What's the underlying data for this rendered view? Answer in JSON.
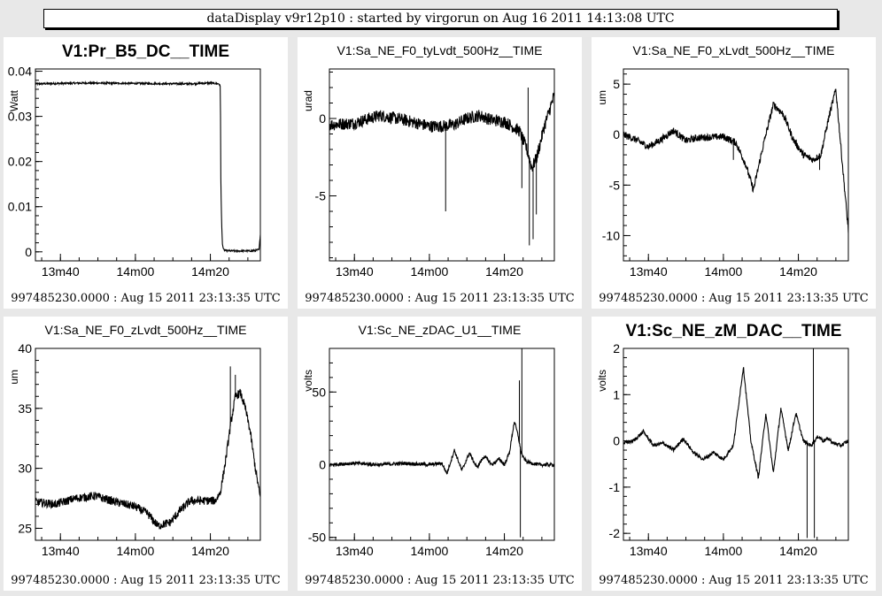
{
  "header": {
    "title": "dataDisplay v9r12p10 : started by virgorun on Aug 16 2011 14:13:08 UTC"
  },
  "chart_data": [
    {
      "type": "line",
      "title": "V1:Pr_B5_DC__TIME",
      "ylabel": "Watt",
      "xlabel": "",
      "footer": "997485230.0000 : Aug 15 2011 23:13:35 UTC",
      "xlim": [
        0,
        900
      ],
      "ylim": [
        -0.002,
        0.0405
      ],
      "x_ticks": [
        {
          "value": 100,
          "label": "13m40"
        },
        {
          "value": 400,
          "label": "14m00"
        },
        {
          "value": 700,
          "label": "14m20"
        }
      ],
      "y_ticks": [
        {
          "value": 0,
          "label": "0"
        },
        {
          "value": 0.01,
          "label": "0.01"
        },
        {
          "value": 0.02,
          "label": "0.02"
        },
        {
          "value": 0.03,
          "label": "0.03"
        },
        {
          "value": 0.04,
          "label": "0.04"
        }
      ],
      "series": [
        {
          "x": [
            0,
            200,
            400,
            600,
            700,
            735,
            740,
            742,
            745,
            748,
            752,
            760,
            780,
            820,
            860,
            880,
            895,
            900
          ],
          "y": [
            0.0372,
            0.0374,
            0.0373,
            0.0372,
            0.0374,
            0.0372,
            0.0365,
            0.015,
            0.0065,
            0.002,
            0.0005,
            0.0003,
            0.0002,
            0.0002,
            0.0002,
            0.0003,
            0.0005,
            0.004
          ],
          "noise": 0.0002
        }
      ]
    },
    {
      "type": "line",
      "title": "V1:Sa_NE_F0_tyLvdt_500Hz__TIME",
      "ylabel": "urad",
      "xlabel": "",
      "footer": "997485230.0000 : Aug 15 2011 23:13:35 UTC",
      "xlim": [
        0,
        900
      ],
      "ylim": [
        -9.2,
        3.2
      ],
      "x_ticks": [
        {
          "value": 100,
          "label": "13m40"
        },
        {
          "value": 400,
          "label": "14m00"
        },
        {
          "value": 700,
          "label": "14m20"
        }
      ],
      "y_ticks": [
        {
          "value": 0,
          "label": "0"
        },
        {
          "value": -5,
          "label": "-5"
        }
      ],
      "series": [
        {
          "x": [
            0,
            100,
            200,
            300,
            350,
            400,
            450,
            500,
            550,
            600,
            650,
            700,
            760,
            790,
            810,
            830,
            860,
            900
          ],
          "y": [
            -0.4,
            -0.3,
            0.2,
            -0.1,
            -0.3,
            -0.5,
            -0.5,
            -0.4,
            0.0,
            0.2,
            -0.1,
            -0.2,
            -0.8,
            -2.0,
            -3.2,
            -2.5,
            -0.5,
            1.5
          ],
          "noise": 0.4,
          "spikes": [
            {
              "x": 465,
              "y": -6.0
            },
            {
              "x": 770,
              "y": -4.5
            },
            {
              "x": 800,
              "y": -8.2
            },
            {
              "x": 815,
              "y": -7.8
            },
            {
              "x": 828,
              "y": -6.2
            },
            {
              "x": 795,
              "y": 2.0
            }
          ]
        }
      ]
    },
    {
      "type": "line",
      "title": "V1:Sa_NE_F0_xLvdt_500Hz__TIME",
      "ylabel": "um",
      "xlabel": "",
      "footer": "997485230.0000 : Aug 15 2011 23:13:35 UTC",
      "xlim": [
        0,
        900
      ],
      "ylim": [
        -12.5,
        6.5
      ],
      "x_ticks": [
        {
          "value": 100,
          "label": "13m40"
        },
        {
          "value": 400,
          "label": "14m00"
        },
        {
          "value": 700,
          "label": "14m20"
        }
      ],
      "y_ticks": [
        {
          "value": 5,
          "label": "5"
        },
        {
          "value": 0,
          "label": "0"
        },
        {
          "value": -5,
          "label": "-5"
        },
        {
          "value": -10,
          "label": "-10"
        }
      ],
      "series": [
        {
          "x": [
            0,
            50,
            100,
            150,
            200,
            250,
            300,
            400,
            450,
            490,
            520,
            560,
            600,
            640,
            680,
            720,
            760,
            790,
            820,
            850,
            880,
            900
          ],
          "y": [
            0,
            -0.5,
            -1.2,
            -0.5,
            0.4,
            -0.6,
            -0.3,
            -0.2,
            -0.8,
            -3.0,
            -5.5,
            -1.0,
            3.0,
            2.0,
            -0.5,
            -2.0,
            -2.5,
            -2.0,
            1.5,
            4.5,
            -4.0,
            -9.5
          ],
          "noise": 0.35,
          "spikes": [
            {
              "x": 440,
              "y": -2.5
            },
            {
              "x": 785,
              "y": -3.5
            }
          ]
        }
      ]
    },
    {
      "type": "line",
      "title": "V1:Sa_NE_F0_zLvdt_500Hz__TIME",
      "ylabel": "um",
      "xlabel": "",
      "footer": "997485230.0000 : Aug 15 2011 23:13:35 UTC",
      "xlim": [
        0,
        900
      ],
      "ylim": [
        24,
        40
      ],
      "x_ticks": [
        {
          "value": 100,
          "label": "13m40"
        },
        {
          "value": 400,
          "label": "14m00"
        },
        {
          "value": 700,
          "label": "14m20"
        }
      ],
      "y_ticks": [
        {
          "value": 40,
          "label": "40"
        },
        {
          "value": 35,
          "label": "35"
        },
        {
          "value": 30,
          "label": "30"
        },
        {
          "value": 25,
          "label": "25"
        }
      ],
      "series": [
        {
          "x": [
            0,
            80,
            160,
            240,
            320,
            400,
            450,
            490,
            540,
            580,
            620,
            680,
            720,
            740,
            760,
            780,
            800,
            820,
            840,
            860,
            880,
            900
          ],
          "y": [
            27.2,
            27.0,
            27.5,
            27.7,
            27.2,
            26.8,
            26.2,
            25.2,
            25.5,
            26.5,
            27.3,
            27.3,
            27.3,
            28.0,
            30.5,
            33.5,
            36.0,
            36.3,
            35.0,
            33.0,
            30.0,
            27.5
          ],
          "noise": 0.35,
          "spikes": [
            {
              "x": 780,
              "y": 38.5
            },
            {
              "x": 800,
              "y": 37.8
            }
          ]
        }
      ]
    },
    {
      "type": "line",
      "title": "V1:Sc_NE_zDAC_U1__TIME",
      "ylabel": "volts",
      "xlabel": "",
      "footer": "997485230.0000 : Aug 15 2011 23:13:35 UTC",
      "xlim": [
        0,
        900
      ],
      "ylim": [
        -52,
        80
      ],
      "x_ticks": [
        {
          "value": 100,
          "label": "13m40"
        },
        {
          "value": 400,
          "label": "14m00"
        },
        {
          "value": 700,
          "label": "14m20"
        }
      ],
      "y_ticks": [
        {
          "value": 50,
          "label": "50"
        },
        {
          "value": 0,
          "label": "0"
        },
        {
          "value": -50,
          "label": "-50"
        }
      ],
      "series": [
        {
          "x": [
            0,
            100,
            200,
            300,
            400,
            450,
            470,
            500,
            530,
            560,
            590,
            620,
            650,
            680,
            700,
            720,
            740,
            755,
            765,
            775,
            790,
            810,
            840,
            870,
            900
          ],
          "y": [
            0,
            1,
            0,
            1,
            0,
            1,
            -6,
            10,
            -4,
            8,
            -2,
            6,
            0,
            4,
            0,
            8,
            30,
            20,
            10,
            5,
            2,
            1,
            0,
            0,
            0
          ],
          "noise": 1.2,
          "spikes": [
            {
              "x": 760,
              "y": 58
            },
            {
              "x": 764,
              "y": -50
            },
            {
              "x": 770,
              "y": 80
            }
          ]
        }
      ]
    },
    {
      "type": "line",
      "title": "V1:Sc_NE_zM_DAC__TIME",
      "ylabel": "volts",
      "xlabel": "",
      "footer": "997485230.0000 : Aug 15 2011 23:13:35 UTC",
      "xlim": [
        0,
        900
      ],
      "ylim": [
        -2.15,
        2.0
      ],
      "x_ticks": [
        {
          "value": 100,
          "label": "13m40"
        },
        {
          "value": 400,
          "label": "14m00"
        },
        {
          "value": 700,
          "label": "14m20"
        }
      ],
      "y_ticks": [
        {
          "value": 2,
          "label": "2"
        },
        {
          "value": 1,
          "label": "1"
        },
        {
          "value": 0,
          "label": "0"
        },
        {
          "value": -1,
          "label": "-1"
        },
        {
          "value": -2,
          "label": "-2"
        }
      ],
      "series": [
        {
          "x": [
            0,
            40,
            80,
            120,
            160,
            200,
            240,
            280,
            320,
            360,
            400,
            440,
            480,
            510,
            540,
            570,
            600,
            630,
            660,
            690,
            720,
            750,
            780,
            800,
            820,
            840,
            870,
            900
          ],
          "y": [
            -0.05,
            0.0,
            0.2,
            -0.1,
            -0.05,
            -0.2,
            0.05,
            -0.25,
            -0.4,
            -0.25,
            -0.4,
            -0.1,
            1.6,
            0.0,
            -0.8,
            0.6,
            -0.7,
            0.7,
            -0.2,
            0.6,
            0.0,
            -0.1,
            0.1,
            0.0,
            0.05,
            -0.05,
            -0.1,
            0.0
          ],
          "noise": 0.04,
          "spikes": [
            {
              "x": 735,
              "y": -2.1
            },
            {
              "x": 760,
              "y": 2.0
            },
            {
              "x": 764,
              "y": -2.1
            }
          ]
        }
      ]
    }
  ]
}
